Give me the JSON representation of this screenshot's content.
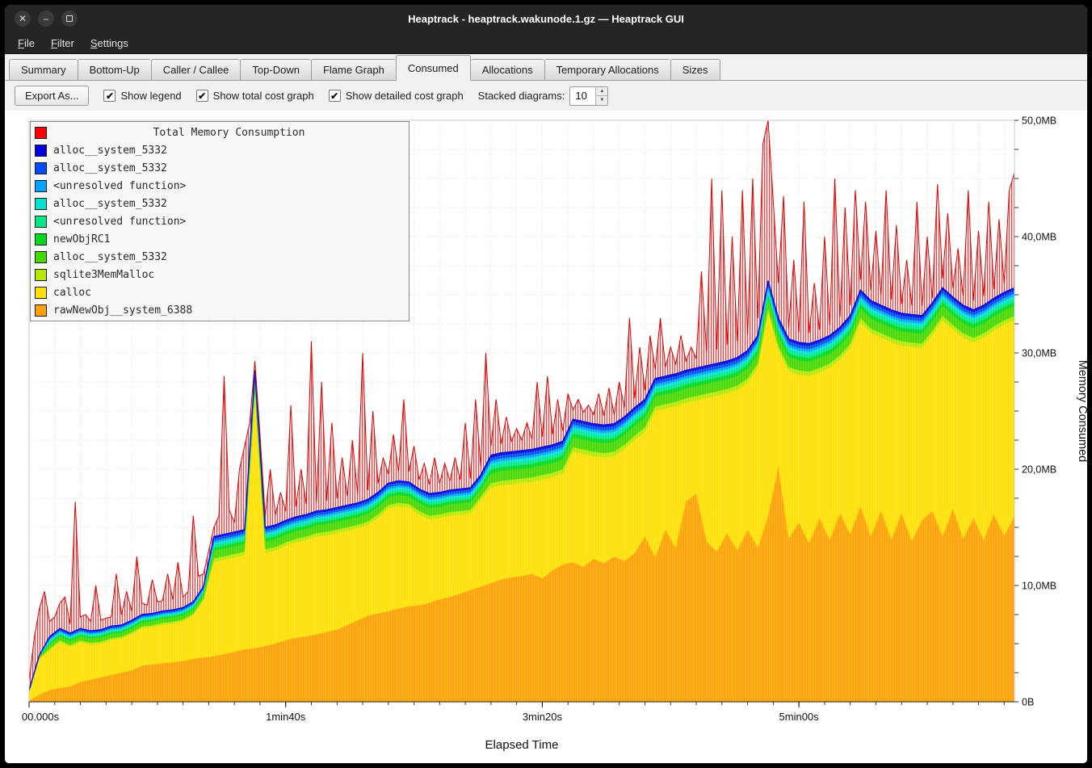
{
  "window": {
    "title": "Heaptrack - heaptrack.wakunode.1.gz — Heaptrack GUI"
  },
  "menubar": {
    "items": [
      "File",
      "Filter",
      "Settings"
    ]
  },
  "tabs": {
    "items": [
      "Summary",
      "Bottom-Up",
      "Caller / Callee",
      "Top-Down",
      "Flame Graph",
      "Consumed",
      "Allocations",
      "Temporary Allocations",
      "Sizes"
    ],
    "active": "Consumed"
  },
  "toolbar": {
    "export_button": "Export As...",
    "checkboxes": [
      {
        "label": "Show legend",
        "checked": true
      },
      {
        "label": "Show total cost graph",
        "checked": true
      },
      {
        "label": "Show detailed cost graph",
        "checked": true
      }
    ],
    "stacked_label": "Stacked diagrams:",
    "stacked_value": "10"
  },
  "chart_data": {
    "type": "area",
    "title": "Total Memory Consumption",
    "xlabel": "Elapsed Time",
    "ylabel": "Memory Consumed",
    "x_max_s": 384,
    "y_max_mb": 50,
    "x_minor_step_s": 10,
    "y_minor_step_mb": 2.5,
    "x_ticks": [
      {
        "t": 0,
        "label": "00.000s"
      },
      {
        "t": 100,
        "label": "1min40s"
      },
      {
        "t": 200,
        "label": "3min20s"
      },
      {
        "t": 300,
        "label": "5min00s"
      }
    ],
    "y_ticks": [
      {
        "v": 0,
        "label": "0B"
      },
      {
        "v": 10,
        "label": "10,0MB"
      },
      {
        "v": 20,
        "label": "20,0MB"
      },
      {
        "v": 30,
        "label": "30,0MB"
      },
      {
        "v": 40,
        "label": "40,0MB"
      },
      {
        "v": 50,
        "label": "50,0MB"
      }
    ],
    "total": {
      "name": "Total Memory Consumption",
      "color": "#ff0000",
      "time_step_s": 2,
      "values": [
        1.8,
        5.5,
        8.0,
        9.5,
        6.9,
        7.3,
        8.5,
        9.0,
        6.7,
        17.2,
        7.3,
        7.5,
        6.9,
        10.0,
        7.0,
        7.2,
        7.3,
        11.0,
        7.5,
        9.5,
        7.8,
        12.5,
        8.5,
        8.3,
        10.5,
        8.6,
        8.7,
        11.0,
        8.8,
        12.0,
        9.0,
        9.5,
        16.0,
        10.8,
        11.0,
        13.0,
        15.0,
        16.0,
        28.0,
        16.5,
        15.4,
        20.0,
        22.0,
        24.0,
        29.3,
        23.0,
        16.0,
        20.0,
        16.1,
        18.0,
        16.4,
        25.5,
        16.8,
        20.0,
        17.0,
        31.0,
        17.2,
        27.5,
        17.3,
        24.0,
        17.5,
        21.0,
        17.7,
        22.5,
        17.9,
        30.0,
        18.2,
        25.0,
        18.8,
        21.0,
        19.6,
        23.0,
        19.8,
        26.0,
        19.8,
        22.0,
        19.1,
        20.5,
        18.7,
        21.0,
        18.8,
        20.5,
        19.0,
        21.0,
        19.1,
        24.0,
        19.2,
        26.0,
        20.3,
        30.0,
        22.0,
        26.0,
        22.2,
        24.5,
        22.4,
        23.5,
        22.5,
        24.0,
        22.6,
        27.5,
        22.8,
        28.0,
        23.0,
        26.0,
        23.3,
        26.5,
        25.1,
        26.0,
        24.9,
        25.5,
        24.7,
        26.5,
        24.6,
        27.0,
        24.7,
        27.5,
        25.3,
        33.0,
        26.1,
        30.5,
        26.8,
        31.5,
        28.6,
        33.0,
        28.8,
        30.5,
        29.0,
        31.5,
        29.3,
        30.5,
        29.5,
        37.0,
        30.1,
        45.0,
        30.3,
        44.0,
        30.7,
        40.0,
        31.0,
        44.0,
        31.6,
        45.0,
        33.0,
        48.0,
        50.0,
        43.0,
        36.0,
        43.5,
        32.2,
        38.0,
        31.8,
        43.0,
        31.7,
        36.0,
        32.0,
        40.0,
        32.4,
        45.0,
        33.1,
        42.5,
        34.1,
        44.0,
        36.3,
        43.0,
        35.4,
        40.5,
        35.0,
        44.0,
        34.6,
        41.0,
        34.2,
        38.0,
        34.1,
        43.0,
        34.0,
        40.0,
        34.7,
        44.5,
        36.4,
        42.0,
        35.6,
        39.0,
        34.9,
        44.0,
        34.5,
        40.5,
        34.9,
        43.0,
        35.5,
        41.5,
        36.0,
        44.0,
        45.5
      ]
    },
    "layers": [
      {
        "name": "rawNewObj__system_6388",
        "color": "#ffa200",
        "time_step_s": 4,
        "values": [
          0.1,
          0.6,
          1.0,
          1.2,
          1.3,
          1.7,
          1.9,
          2.1,
          2.3,
          2.5,
          2.7,
          3.1,
          3.2,
          3.3,
          3.4,
          3.5,
          3.7,
          3.8,
          3.9,
          4.1,
          4.3,
          4.5,
          4.6,
          4.8,
          5.0,
          5.3,
          5.5,
          5.6,
          5.8,
          6.0,
          6.2,
          6.6,
          7.0,
          7.4,
          7.6,
          7.8,
          8.0,
          8.2,
          8.3,
          8.5,
          8.8,
          9.0,
          9.3,
          9.6,
          9.9,
          10.2,
          10.5,
          10.7,
          10.8,
          11.0,
          10.6,
          11.3,
          11.8,
          12.0,
          11.6,
          12.3,
          11.9,
          12.5,
          12.1,
          12.8,
          14.2,
          12.4,
          14.8,
          13.2,
          17.2,
          17.9,
          13.8,
          12.9,
          14.5,
          13.0,
          14.8,
          13.2,
          16.0,
          20.2,
          14.0,
          15.4,
          13.6,
          15.8,
          13.9,
          16.2,
          14.4,
          16.8,
          14.2,
          16.4,
          13.9,
          16.2,
          13.8,
          15.6,
          16.4,
          14.2,
          16.6,
          14.0,
          15.8,
          13.9,
          16.1,
          14.3,
          15.9
        ]
      },
      {
        "name": "calloc",
        "color": "#ffe000",
        "time_step_s": 4,
        "values": [
          0.6,
          3.1,
          3.4,
          3.9,
          3.4,
          3.4,
          3.0,
          2.9,
          3.0,
          2.9,
          3.1,
          3.2,
          3.2,
          3.3,
          3.3,
          3.4,
          3.7,
          4.9,
          8.1,
          8.1,
          8.1,
          8.1,
          21.7,
          8.0,
          8.0,
          8.1,
          8.2,
          8.3,
          8.4,
          8.3,
          8.3,
          8.1,
          7.9,
          7.8,
          8.2,
          8.8,
          8.8,
          8.5,
          7.8,
          7.2,
          7.0,
          7.0,
          6.8,
          6.6,
          7.4,
          8.2,
          8.1,
          8.0,
          8.0,
          7.9,
          8.5,
          8.0,
          7.8,
          9.5,
          9.7,
          8.8,
          9.1,
          8.6,
          9.6,
          9.7,
          9.0,
          12.6,
          10.4,
          12.2,
          8.5,
          8.0,
          12.3,
          13.4,
          12.0,
          13.8,
          12.6,
          15.5,
          17.4,
          10.0,
          14.4,
          12.7,
          14.4,
          12.5,
          14.8,
          13.2,
          16.0,
          15.8,
          17.5,
          14.9,
          17.0,
          14.4,
          16.7,
          14.8,
          15.1,
          18.6,
          15.4,
          17.3,
          15.1,
          17.4,
          15.8,
          18.1,
          16.9
        ]
      },
      {
        "name": "sqlite3MemMalloc",
        "color": "#b5e800",
        "t": [
          0,
          4,
          8,
          68,
          72,
          176,
          180,
          384
        ],
        "values": [
          0.04,
          0.04,
          0.17,
          0.17,
          0.31,
          0.31,
          0.39,
          0.39
        ]
      },
      {
        "name": "alloc__system_5332",
        "color": "#46d800",
        "t": [
          0,
          4,
          8,
          68,
          72,
          176,
          180,
          384
        ],
        "values": [
          0.09,
          0.09,
          0.36,
          0.36,
          0.66,
          0.66,
          0.84,
          0.84
        ]
      },
      {
        "name": "newObjRC1",
        "color": "#00d81e",
        "t": [
          0,
          4,
          8,
          68,
          72,
          176,
          180,
          384
        ],
        "values": [
          0.04,
          0.04,
          0.14,
          0.14,
          0.26,
          0.26,
          0.34,
          0.34
        ]
      },
      {
        "name": "<unresolved function>",
        "color": "#00e986",
        "t": [
          0,
          4,
          8,
          68,
          72,
          176,
          180,
          384
        ],
        "values": [
          0.03,
          0.03,
          0.12,
          0.12,
          0.22,
          0.22,
          0.28,
          0.28
        ]
      },
      {
        "name": "alloc__system_5332",
        "color": "#00e3d0",
        "t": [
          0,
          4,
          8,
          68,
          72,
          176,
          180,
          384
        ],
        "values": [
          0.03,
          0.03,
          0.11,
          0.11,
          0.2,
          0.2,
          0.25,
          0.25
        ]
      },
      {
        "name": "<unresolved function>",
        "color": "#00a3ff",
        "t": [
          0,
          4,
          8,
          68,
          72,
          176,
          180,
          384
        ],
        "values": [
          0.02,
          0.02,
          0.1,
          0.1,
          0.18,
          0.18,
          0.22,
          0.22
        ]
      },
      {
        "name": "alloc__system_5332",
        "color": "#004bff",
        "t": [
          0,
          4,
          8,
          68,
          72,
          176,
          180,
          384
        ],
        "values": [
          0.03,
          0.03,
          0.12,
          0.12,
          0.22,
          0.22,
          0.28,
          0.28
        ]
      },
      {
        "name": "alloc__system_5332",
        "color": "#0000dd",
        "t": [
          0,
          4,
          8,
          68,
          72,
          176,
          180,
          384
        ],
        "values": [
          0.02,
          0.02,
          0.08,
          0.08,
          0.15,
          0.15,
          0.2,
          0.2
        ]
      }
    ]
  }
}
